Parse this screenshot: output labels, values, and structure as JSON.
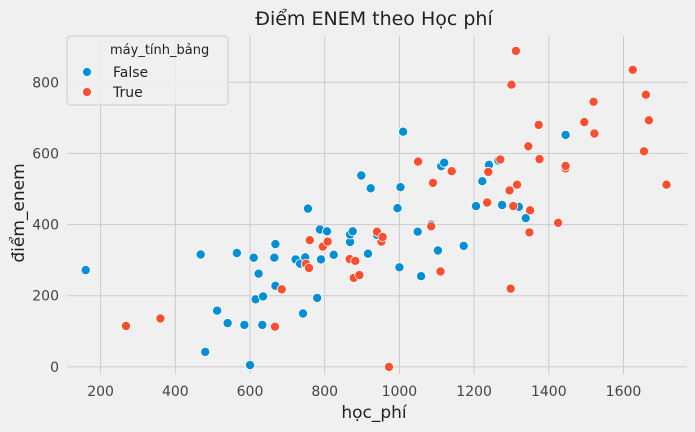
{
  "chart_data": {
    "type": "scatter",
    "title": "Điểm ENEM theo Học phí",
    "xlabel": "học_phí",
    "ylabel": "điểm_enem",
    "xlim": [
      110,
      1770
    ],
    "ylim": [
      -20,
      930
    ],
    "xticks": [
      200,
      400,
      600,
      800,
      1000,
      1200,
      1400,
      1600
    ],
    "yticks": [
      0,
      200,
      400,
      600,
      800
    ],
    "grid": true,
    "legend": {
      "title": "máy_tính_bảng",
      "placement": "top-left"
    },
    "series": [
      {
        "name": "False",
        "color": "#008fd5",
        "points": [
          [
            160,
            272
          ],
          [
            468,
            316
          ],
          [
            480,
            42
          ],
          [
            512,
            158
          ],
          [
            540,
            123
          ],
          [
            565,
            320
          ],
          [
            585,
            118
          ],
          [
            600,
            5
          ],
          [
            610,
            307
          ],
          [
            615,
            190
          ],
          [
            623,
            262
          ],
          [
            633,
            118
          ],
          [
            635,
            198
          ],
          [
            665,
            307
          ],
          [
            668,
            345
          ],
          [
            668,
            228
          ],
          [
            722,
            302
          ],
          [
            734,
            290
          ],
          [
            742,
            150
          ],
          [
            748,
            308
          ],
          [
            755,
            445
          ],
          [
            750,
            288
          ],
          [
            780,
            194
          ],
          [
            787,
            386
          ],
          [
            790,
            302
          ],
          [
            806,
            381
          ],
          [
            824,
            315
          ],
          [
            868,
            351
          ],
          [
            868,
            372
          ],
          [
            875,
            381
          ],
          [
            898,
            538
          ],
          [
            916,
            318
          ],
          [
            923,
            502
          ],
          [
            940,
            371
          ],
          [
            995,
            446
          ],
          [
            1003,
            505
          ],
          [
            1000,
            280
          ],
          [
            1010,
            661
          ],
          [
            1049,
            380
          ],
          [
            1058,
            255
          ],
          [
            1085,
            400
          ],
          [
            1103,
            327
          ],
          [
            1112,
            564
          ],
          [
            1120,
            574
          ],
          [
            1172,
            340
          ],
          [
            1205,
            452
          ],
          [
            1222,
            522
          ],
          [
            1240,
            568
          ],
          [
            1265,
            580
          ],
          [
            1275,
            455
          ],
          [
            1320,
            450
          ],
          [
            1338,
            418
          ],
          [
            1445,
            652
          ]
        ]
      },
      {
        "name": "True",
        "color": "#fc4f30",
        "points": [
          [
            268,
            115
          ],
          [
            360,
            136
          ],
          [
            667,
            113
          ],
          [
            685,
            218
          ],
          [
            750,
            290
          ],
          [
            758,
            278
          ],
          [
            760,
            356
          ],
          [
            795,
            338
          ],
          [
            808,
            352
          ],
          [
            867,
            303
          ],
          [
            878,
            250
          ],
          [
            882,
            298
          ],
          [
            893,
            258
          ],
          [
            940,
            380
          ],
          [
            952,
            352
          ],
          [
            955,
            365
          ],
          [
            972,
            0
          ],
          [
            1050,
            577
          ],
          [
            1085,
            395
          ],
          [
            1090,
            517
          ],
          [
            1110,
            268
          ],
          [
            1140,
            550
          ],
          [
            1235,
            462
          ],
          [
            1238,
            548
          ],
          [
            1270,
            583
          ],
          [
            1295,
            496
          ],
          [
            1298,
            220
          ],
          [
            1300,
            793
          ],
          [
            1305,
            452
          ],
          [
            1312,
            888
          ],
          [
            1315,
            512
          ],
          [
            1345,
            620
          ],
          [
            1348,
            378
          ],
          [
            1350,
            440
          ],
          [
            1373,
            680
          ],
          [
            1375,
            584
          ],
          [
            1425,
            405
          ],
          [
            1445,
            558
          ],
          [
            1445,
            565
          ],
          [
            1495,
            688
          ],
          [
            1520,
            745
          ],
          [
            1522,
            656
          ],
          [
            1625,
            835
          ],
          [
            1655,
            606
          ],
          [
            1660,
            765
          ],
          [
            1668,
            693
          ],
          [
            1715,
            512
          ]
        ]
      }
    ]
  }
}
